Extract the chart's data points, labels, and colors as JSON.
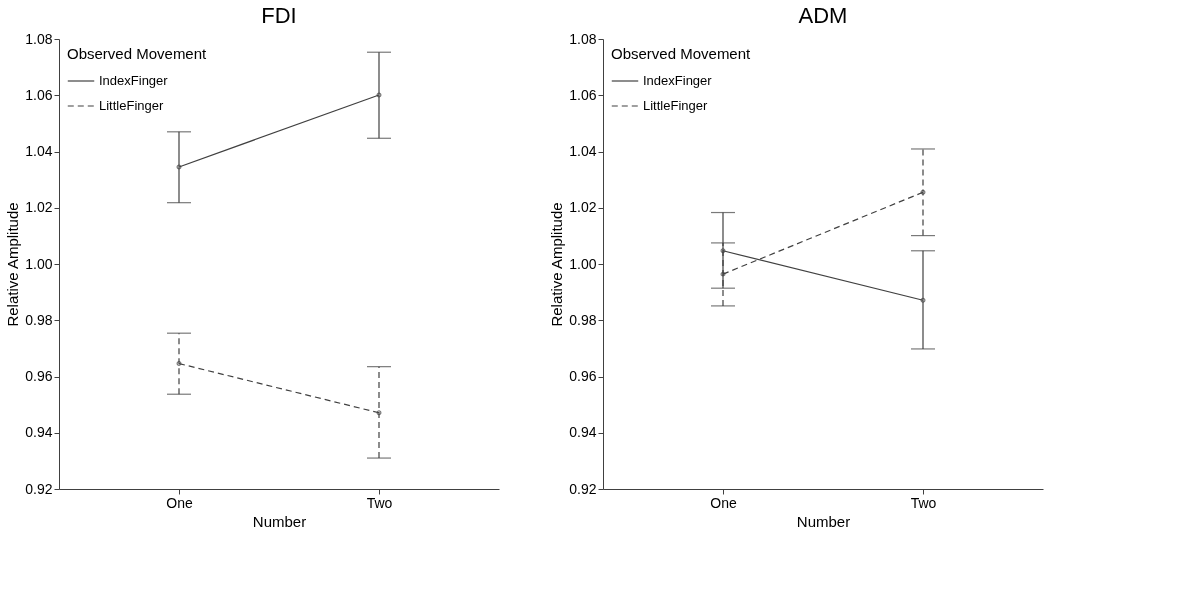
{
  "chart_data": [
    {
      "type": "line",
      "title": "FDI",
      "xlabel": "Number",
      "ylabel": "Relative Amplitude",
      "legend_title": "Observed Movement",
      "categories": [
        "One",
        "Two"
      ],
      "series": [
        {
          "name": "IndexFinger",
          "color": "#404040",
          "line_style": "solid",
          "values": [
            1.0345,
            1.0601
          ],
          "errors": [
            [
              1.0218,
              1.047
            ],
            [
              1.0447,
              1.0753
            ]
          ]
        },
        {
          "name": "LittleFinger",
          "color": "#404040",
          "line_style": "dashed",
          "values": [
            0.9646,
            0.9471
          ],
          "errors": [
            [
              0.9537,
              0.9754
            ],
            [
              0.931,
              0.9635
            ]
          ]
        }
      ],
      "ylim": [
        0.92,
        1.08
      ],
      "yticks": [
        0.92,
        0.94,
        0.96,
        0.98,
        {
          "value": 1.0,
          "label": "1.00"
        },
        1.02,
        1.04,
        1.06,
        1.08
      ],
      "legend": "top left",
      "marker": "circle",
      "grid": false
    },
    {
      "type": "line",
      "title": "ADM",
      "xlabel": "Number",
      "ylabel": "Relative Amplitude",
      "legend_title": "Observed Movement",
      "categories": [
        "One",
        "Two"
      ],
      "series": [
        {
          "name": "IndexFinger",
          "color": "#404040",
          "line_style": "solid",
          "values": [
            1.0047,
            0.9871
          ],
          "errors": [
            [
              0.9914,
              1.0183
            ],
            [
              0.9698,
              1.0047
            ]
          ]
        },
        {
          "name": "LittleFinger",
          "color": "#404040",
          "line_style": "dashed",
          "values": [
            0.9964,
            1.0255
          ],
          "errors": [
            [
              0.9851,
              1.0075
            ],
            [
              1.0101,
              1.0409
            ]
          ]
        }
      ],
      "ylim": [
        0.92,
        1.08
      ],
      "yticks": [
        0.92,
        0.94,
        0.96,
        0.98,
        {
          "value": 1.0,
          "label": "1.00"
        },
        1.02,
        1.04,
        1.06,
        1.08
      ],
      "legend": "top left",
      "marker": "circle",
      "grid": false
    }
  ]
}
